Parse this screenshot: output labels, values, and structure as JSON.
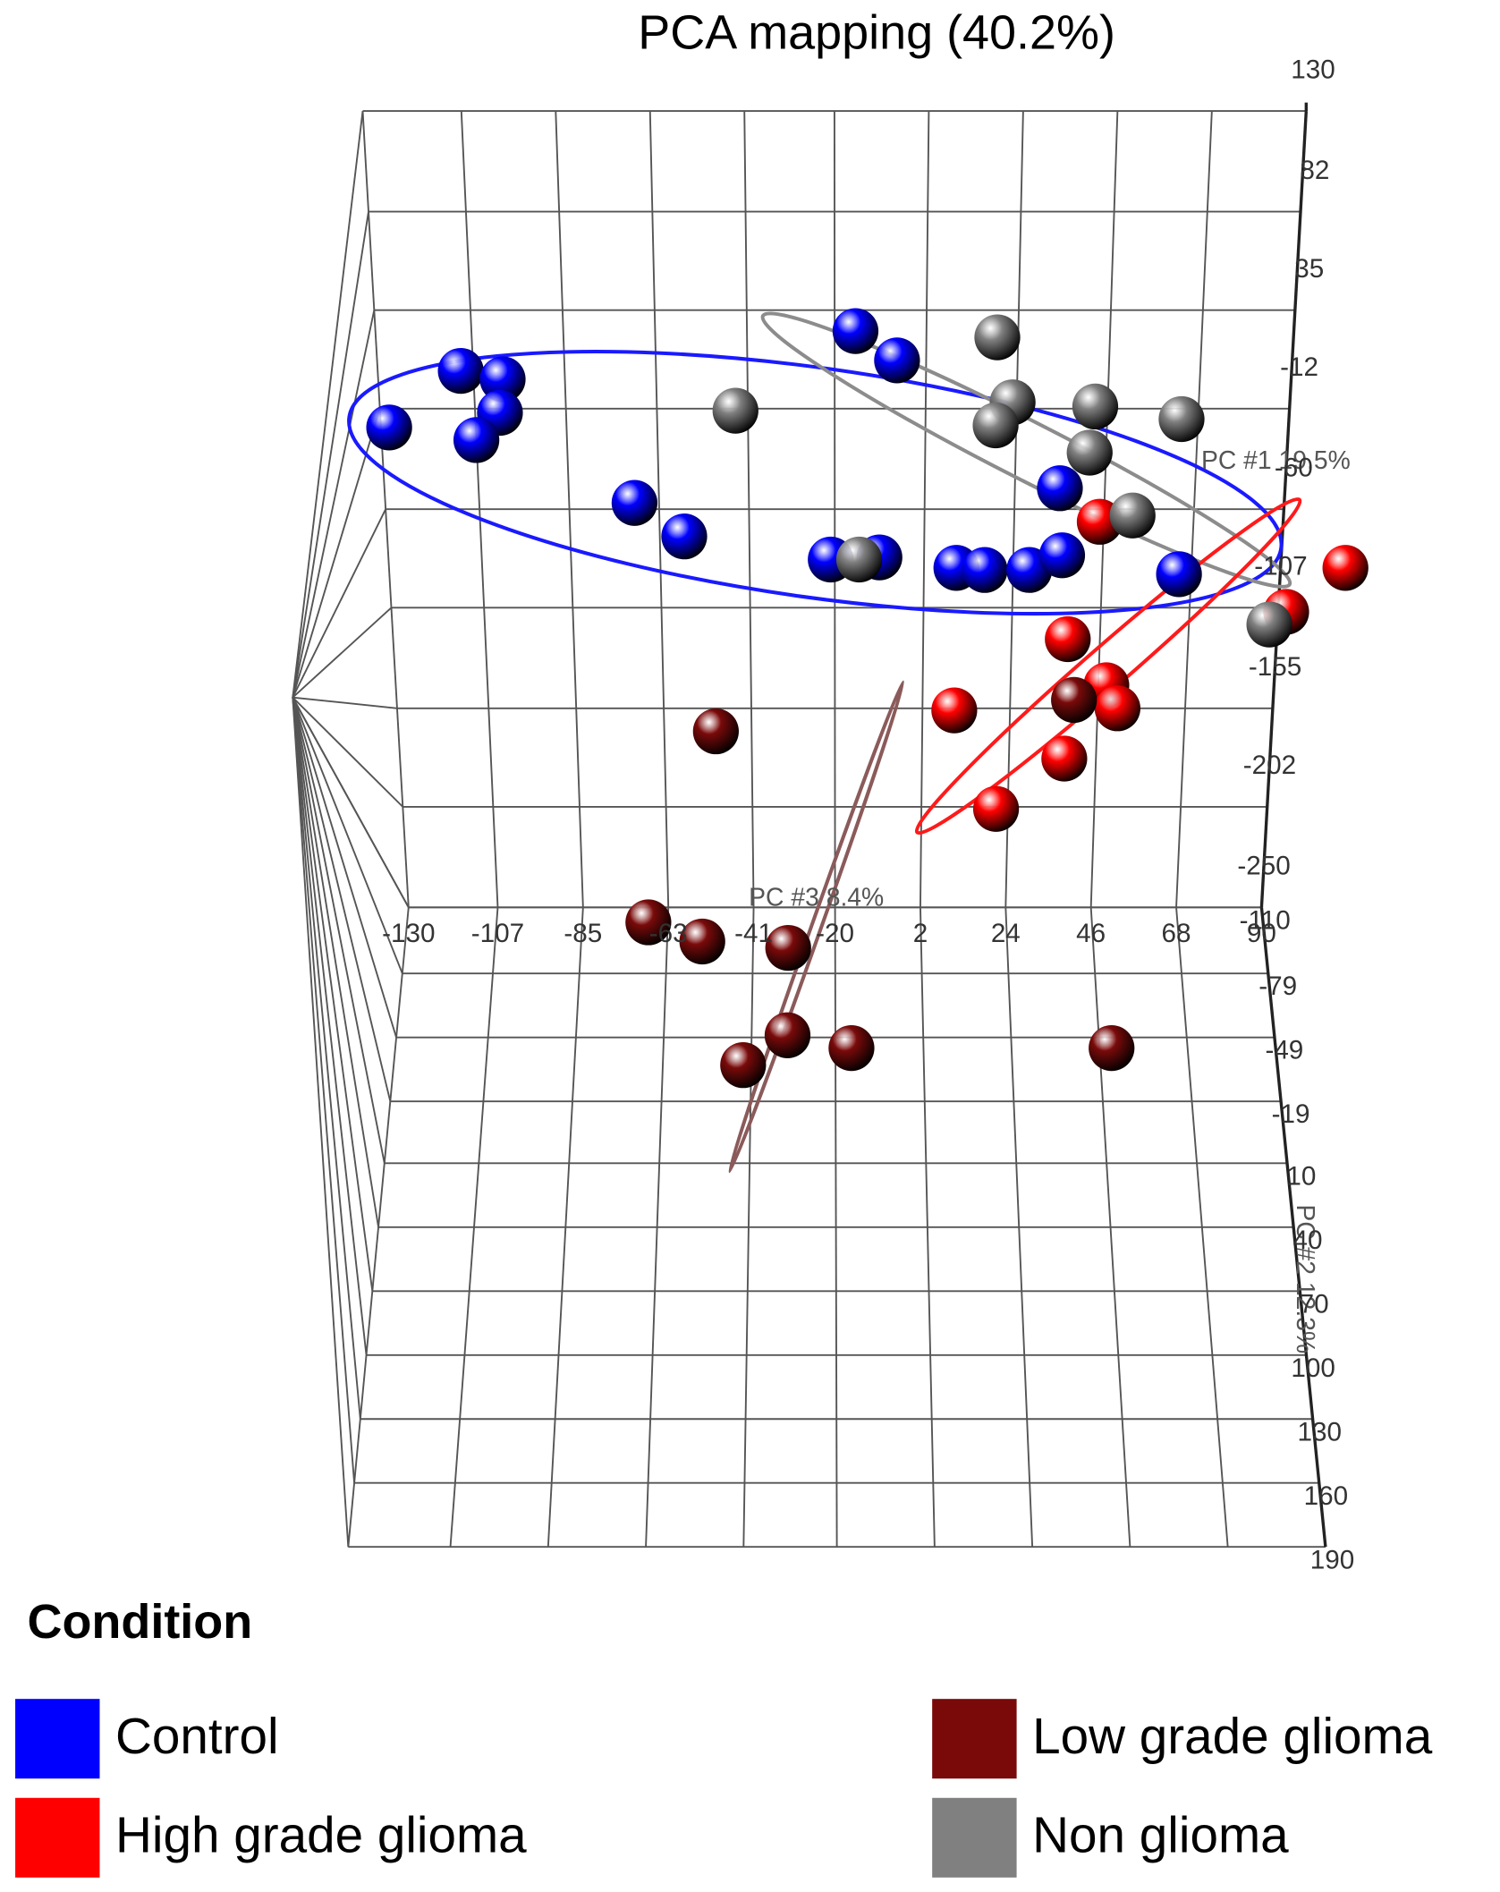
{
  "chart_data": {
    "type": "scatter3d",
    "title": "PCA mapping (40.2%)",
    "x_label": "PC #3 8.4%",
    "y_label": "PC #1 19.5%",
    "z_label": "PC #2 12.3%",
    "legend_title": "Condition",
    "xlim": [
      -130,
      90
    ],
    "ylim": [
      -250,
      130
    ],
    "zlim": [
      -110,
      190
    ],
    "xticks": [
      -130,
      -107,
      -85,
      -63,
      -41,
      -20,
      2,
      24,
      46,
      68,
      90
    ],
    "yticks": [
      130,
      82,
      35,
      -12,
      -60,
      -107,
      -155,
      -202,
      -250
    ],
    "zticks": [
      -110,
      -79,
      -49,
      -19,
      10,
      40,
      70,
      100,
      130,
      160,
      190
    ],
    "grid": true,
    "series": [
      {
        "name": "Control",
        "color": "#0000ff",
        "x": [
          -110,
          -100,
          -101,
          -128,
          -107,
          -15,
          -5,
          -69,
          -57,
          -21,
          -9,
          10,
          17,
          28,
          36,
          35,
          65
        ],
        "y": [
          6,
          2,
          -14,
          -21,
          -27,
          25,
          11,
          -57,
          -73,
          -84,
          -83,
          -88,
          -89,
          -89,
          -82,
          -50,
          -91
        ],
        "z": [
          -110,
          -110,
          -110,
          -110,
          -110,
          -110,
          -110,
          -110,
          -110,
          -110,
          -110,
          -110,
          -110,
          -110,
          -110,
          -110,
          -110
        ]
      },
      {
        "name": "High grade glioma",
        "color": "#ff0000",
        "x": [
          45,
          106,
          92,
          38,
          48,
          51,
          10,
          38,
          21
        ],
        "y": [
          -66,
          -88,
          -109,
          -122,
          -144,
          -155,
          -156,
          -179,
          -203
        ],
        "z": [
          -110,
          -110,
          -110,
          -110,
          -110,
          -110,
          -110,
          -110,
          -110
        ]
      },
      {
        "name": "Low grade glioma",
        "color": "#7a0a0a",
        "x": [
          -50,
          40,
          -68,
          -54,
          -32,
          -32,
          -16,
          -43,
          49
        ],
        "y": [
          -166,
          -151,
          -250,
          -250,
          -250,
          -250,
          -250,
          -250,
          -250
        ],
        "z": [
          -110,
          -110,
          -103,
          -94,
          -91,
          -50,
          -44,
          -36,
          -44
        ]
      },
      {
        "name": "Non glioma",
        "color": "#808080",
        "x": [
          -44,
          19,
          23,
          43,
          64,
          19,
          42,
          53,
          -14,
          88
        ],
        "y": [
          -13,
          22,
          -9,
          -11,
          -17,
          -20,
          -33,
          -63,
          -84,
          -115
        ],
        "z": [
          -110,
          -110,
          -110,
          -110,
          -110,
          -110,
          -110,
          -110,
          -110,
          -110
        ]
      }
    ]
  }
}
